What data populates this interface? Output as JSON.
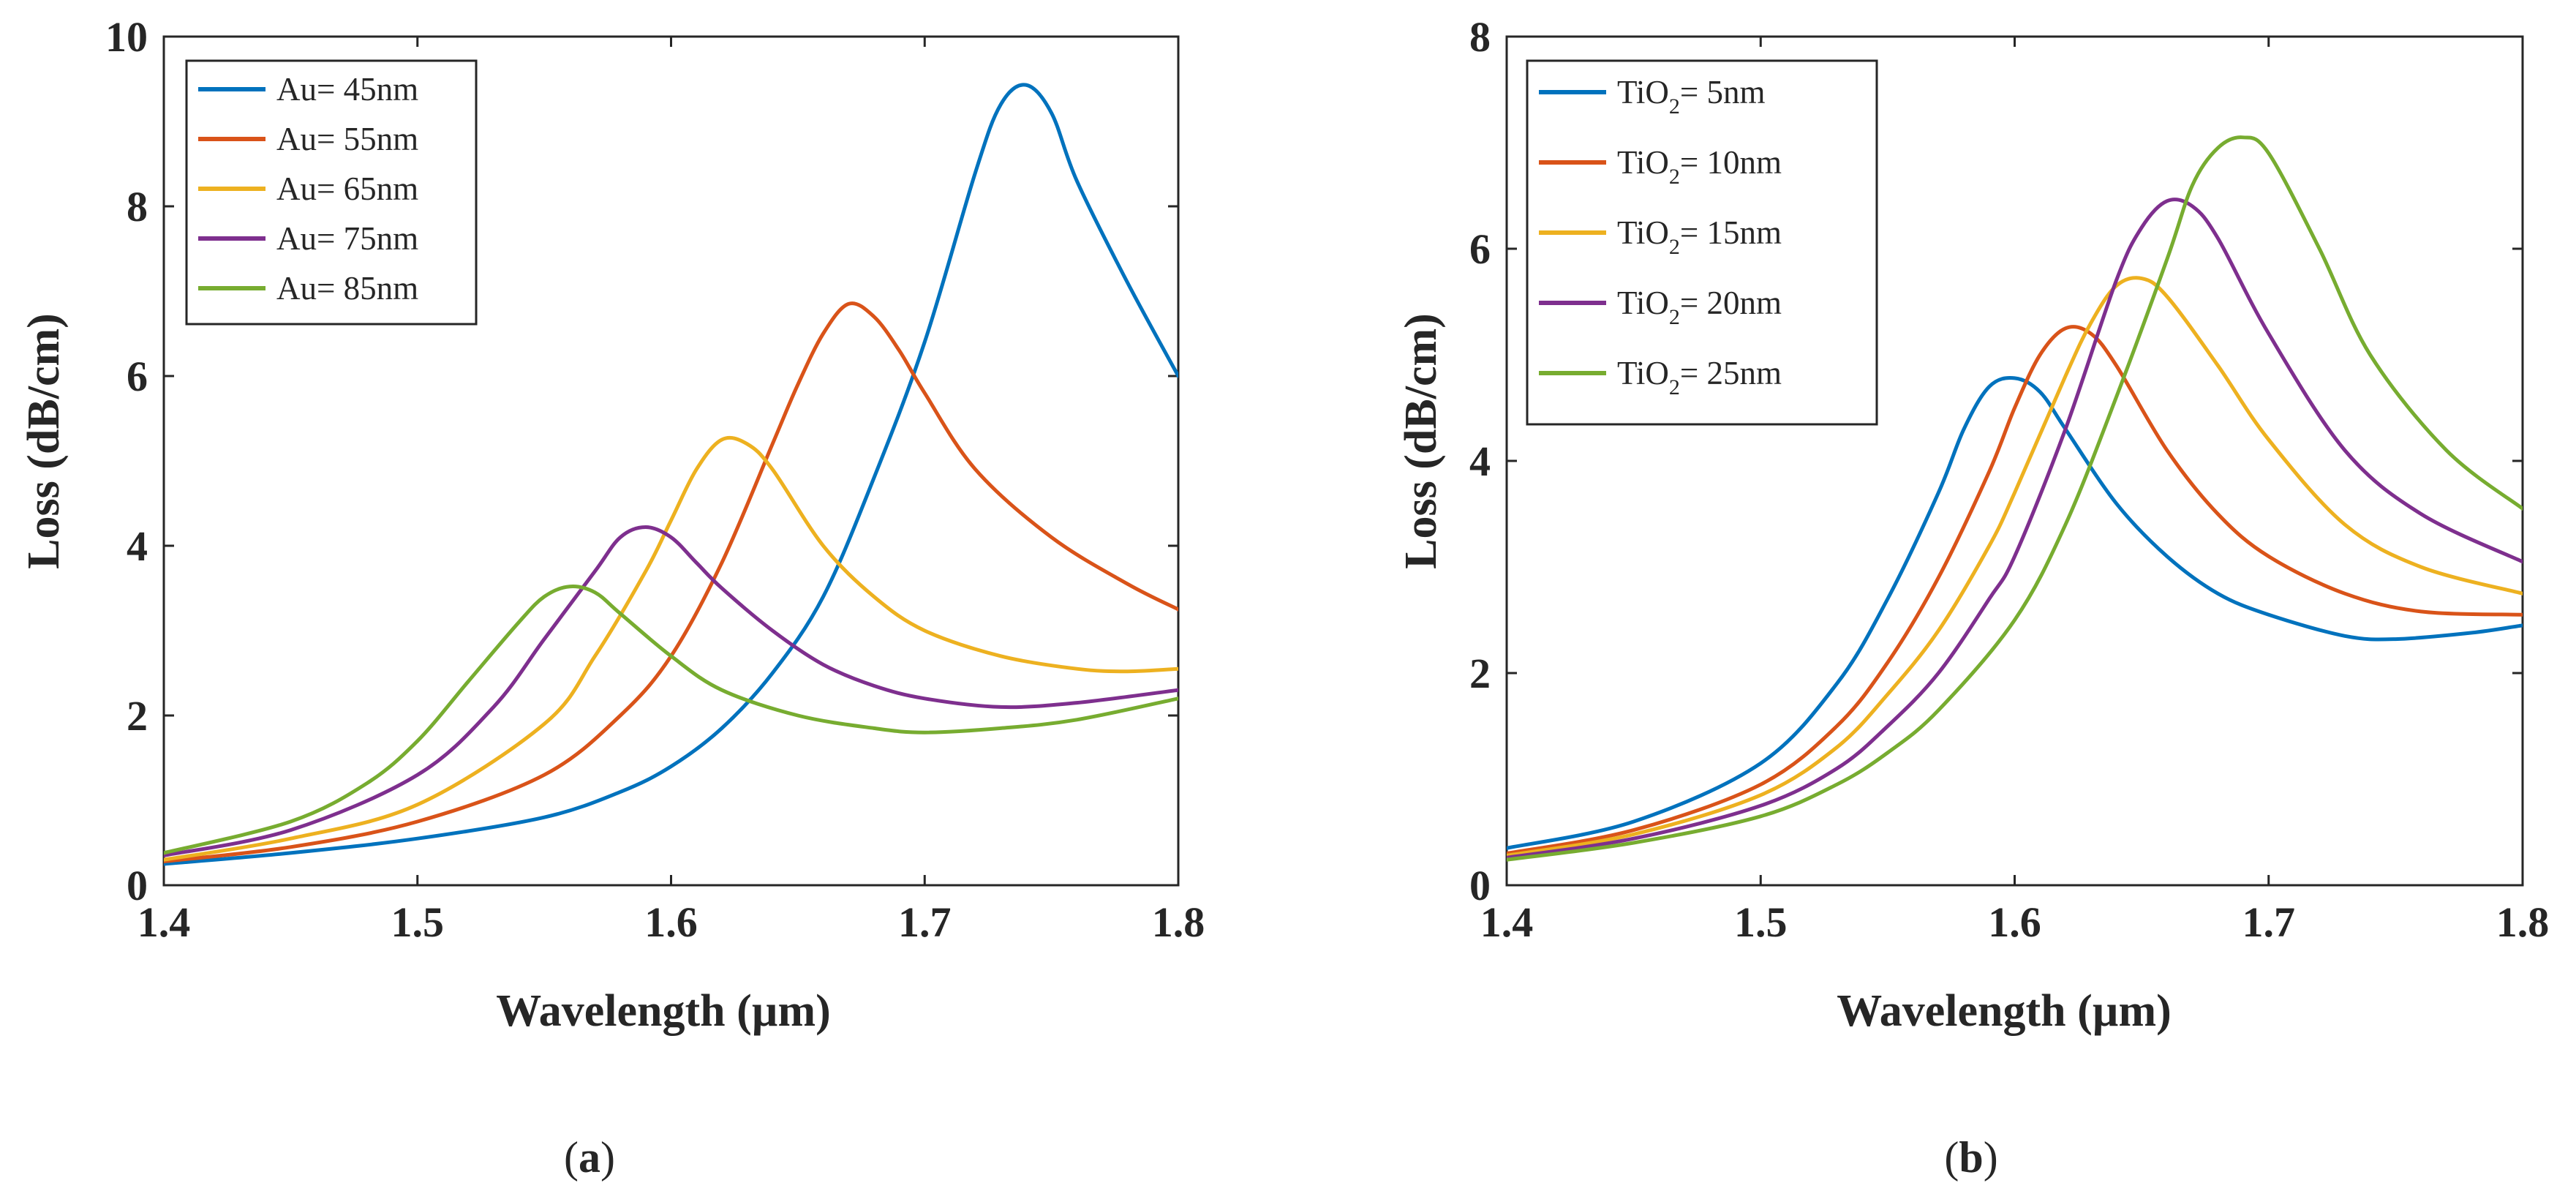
{
  "panels": [
    {
      "id": "a",
      "caption_open": "(",
      "caption_letter": "a",
      "caption_close": ")"
    },
    {
      "id": "b",
      "caption_open": "(",
      "caption_letter": "b",
      "caption_close": ")"
    }
  ],
  "chart_data": [
    {
      "type": "line",
      "title": "",
      "xlabel": "Wavelength (µm)",
      "ylabel": "Loss (dB/cm)",
      "xlim": [
        1.4,
        1.8
      ],
      "ylim": [
        0,
        10
      ],
      "xticks": [
        1.4,
        1.5,
        1.6,
        1.7,
        1.8
      ],
      "xtick_labels": [
        "1.4",
        "1.5",
        "1.6",
        "1.7",
        "1.8"
      ],
      "yticks": [
        0,
        2,
        4,
        6,
        8,
        10
      ],
      "ytick_labels": [
        "0",
        "2",
        "4",
        "6",
        "8",
        "10"
      ],
      "legend_position": "top-left",
      "series": [
        {
          "name": "Au= 45nm",
          "color": "#0072BD",
          "x": [
            1.4,
            1.45,
            1.5,
            1.55,
            1.58,
            1.6,
            1.62,
            1.64,
            1.66,
            1.68,
            1.7,
            1.72,
            1.73,
            1.74,
            1.75,
            1.76,
            1.78,
            1.8
          ],
          "y": [
            0.25,
            0.38,
            0.55,
            0.8,
            1.1,
            1.4,
            1.85,
            2.5,
            3.4,
            4.8,
            6.4,
            8.4,
            9.2,
            9.43,
            9.1,
            8.3,
            7.1,
            6.0
          ]
        },
        {
          "name": "Au= 55nm",
          "color": "#D95319",
          "x": [
            1.4,
            1.45,
            1.5,
            1.55,
            1.58,
            1.6,
            1.62,
            1.64,
            1.65,
            1.66,
            1.67,
            1.68,
            1.69,
            1.7,
            1.72,
            1.75,
            1.78,
            1.8
          ],
          "y": [
            0.28,
            0.45,
            0.75,
            1.3,
            2.0,
            2.7,
            3.8,
            5.2,
            5.9,
            6.5,
            6.85,
            6.7,
            6.3,
            5.8,
            4.9,
            4.1,
            3.55,
            3.25
          ]
        },
        {
          "name": "Au= 65nm",
          "color": "#EDB120",
          "x": [
            1.4,
            1.45,
            1.5,
            1.55,
            1.57,
            1.59,
            1.6,
            1.61,
            1.62,
            1.63,
            1.64,
            1.66,
            1.68,
            1.7,
            1.73,
            1.76,
            1.78,
            1.8
          ],
          "y": [
            0.3,
            0.55,
            0.95,
            1.9,
            2.7,
            3.7,
            4.3,
            4.9,
            5.25,
            5.2,
            4.9,
            4.0,
            3.4,
            3.0,
            2.7,
            2.55,
            2.52,
            2.55
          ]
        },
        {
          "name": "Au= 75nm",
          "color": "#7E2F8E",
          "x": [
            1.4,
            1.45,
            1.5,
            1.53,
            1.55,
            1.57,
            1.58,
            1.59,
            1.6,
            1.61,
            1.62,
            1.64,
            1.66,
            1.68,
            1.7,
            1.73,
            1.76,
            1.8
          ],
          "y": [
            0.35,
            0.65,
            1.3,
            2.1,
            2.9,
            3.7,
            4.1,
            4.22,
            4.1,
            3.8,
            3.5,
            3.0,
            2.6,
            2.35,
            2.2,
            2.1,
            2.15,
            2.3
          ]
        },
        {
          "name": "Au= 85nm",
          "color": "#77AC30",
          "x": [
            1.4,
            1.45,
            1.48,
            1.5,
            1.52,
            1.54,
            1.55,
            1.56,
            1.57,
            1.58,
            1.6,
            1.62,
            1.65,
            1.68,
            1.7,
            1.73,
            1.76,
            1.8
          ],
          "y": [
            0.38,
            0.75,
            1.2,
            1.7,
            2.4,
            3.1,
            3.4,
            3.52,
            3.45,
            3.2,
            2.7,
            2.3,
            2.0,
            1.85,
            1.8,
            1.85,
            1.95,
            2.2
          ]
        }
      ]
    },
    {
      "type": "line",
      "title": "",
      "xlabel": "Wavelength (µm)",
      "ylabel": "Loss (dB/cm)",
      "xlim": [
        1.4,
        1.8
      ],
      "ylim": [
        0,
        8
      ],
      "xticks": [
        1.4,
        1.5,
        1.6,
        1.7,
        1.8
      ],
      "xtick_labels": [
        "1.4",
        "1.5",
        "1.6",
        "1.7",
        "1.8"
      ],
      "yticks": [
        0,
        2,
        4,
        6,
        8
      ],
      "ytick_labels": [
        "0",
        "2",
        "4",
        "6",
        "8"
      ],
      "legend_position": "top-left",
      "legend_label_prefix": "TiO",
      "legend_label_subscript": "2",
      "series": [
        {
          "name": "TiO2= 5nm",
          "label_suffix": "= 5nm",
          "color": "#0072BD",
          "x": [
            1.4,
            1.45,
            1.5,
            1.53,
            1.55,
            1.57,
            1.58,
            1.59,
            1.6,
            1.61,
            1.62,
            1.64,
            1.66,
            1.68,
            1.7,
            1.73,
            1.75,
            1.78,
            1.8
          ],
          "y": [
            0.35,
            0.6,
            1.15,
            1.9,
            2.7,
            3.7,
            4.3,
            4.7,
            4.78,
            4.65,
            4.3,
            3.6,
            3.1,
            2.75,
            2.55,
            2.35,
            2.32,
            2.38,
            2.45
          ]
        },
        {
          "name": "TiO2= 10nm",
          "label_suffix": "= 10nm",
          "color": "#D95319",
          "x": [
            1.4,
            1.45,
            1.5,
            1.53,
            1.55,
            1.57,
            1.59,
            1.6,
            1.61,
            1.62,
            1.63,
            1.64,
            1.66,
            1.68,
            1.7,
            1.73,
            1.76,
            1.8
          ],
          "y": [
            0.3,
            0.52,
            0.95,
            1.5,
            2.1,
            2.9,
            3.9,
            4.5,
            5.0,
            5.25,
            5.2,
            4.9,
            4.1,
            3.5,
            3.1,
            2.75,
            2.58,
            2.55
          ]
        },
        {
          "name": "TiO2= 15nm",
          "label_suffix": "= 15nm",
          "color": "#EDB120",
          "x": [
            1.4,
            1.45,
            1.5,
            1.53,
            1.55,
            1.57,
            1.59,
            1.6,
            1.62,
            1.63,
            1.64,
            1.65,
            1.66,
            1.68,
            1.7,
            1.73,
            1.76,
            1.8
          ],
          "y": [
            0.28,
            0.48,
            0.85,
            1.3,
            1.8,
            2.4,
            3.2,
            3.7,
            4.8,
            5.3,
            5.65,
            5.72,
            5.55,
            4.9,
            4.2,
            3.4,
            3.0,
            2.75
          ]
        },
        {
          "name": "TiO2= 20nm",
          "label_suffix": "= 20nm",
          "color": "#7E2F8E",
          "x": [
            1.4,
            1.45,
            1.5,
            1.53,
            1.55,
            1.57,
            1.59,
            1.6,
            1.62,
            1.64,
            1.65,
            1.66,
            1.67,
            1.68,
            1.7,
            1.73,
            1.76,
            1.8
          ],
          "y": [
            0.26,
            0.44,
            0.75,
            1.1,
            1.5,
            2.0,
            2.7,
            3.1,
            4.3,
            5.7,
            6.2,
            6.45,
            6.4,
            6.1,
            5.2,
            4.1,
            3.5,
            3.05
          ]
        },
        {
          "name": "TiO2= 25nm",
          "label_suffix": "= 25nm",
          "color": "#77AC30",
          "x": [
            1.4,
            1.45,
            1.5,
            1.53,
            1.55,
            1.57,
            1.6,
            1.62,
            1.64,
            1.66,
            1.67,
            1.68,
            1.69,
            1.7,
            1.72,
            1.74,
            1.77,
            1.8
          ],
          "y": [
            0.24,
            0.4,
            0.65,
            0.95,
            1.25,
            1.65,
            2.5,
            3.4,
            4.6,
            5.9,
            6.6,
            6.95,
            7.05,
            6.9,
            6.0,
            5.0,
            4.1,
            3.55
          ]
        }
      ]
    }
  ]
}
